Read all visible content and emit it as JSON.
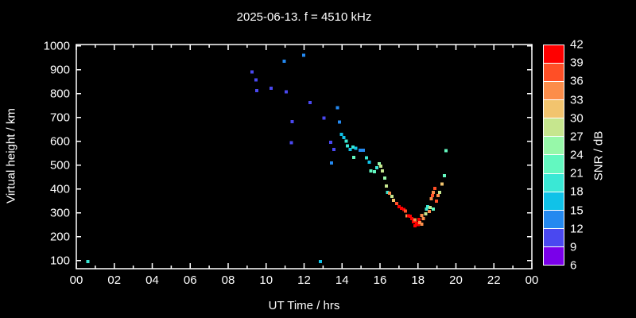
{
  "window": {
    "background": "#000000",
    "foreground": "#ffffff"
  },
  "title": "2025-06-13. f = 4510 kHz",
  "axes": {
    "x_label": "UT Time / hrs",
    "y_label": "Virtual height / km",
    "x_tick_labels": [
      "00",
      "02",
      "04",
      "06",
      "08",
      "10",
      "12",
      "14",
      "16",
      "18",
      "20",
      "22",
      "00"
    ],
    "y_tick_labels": [
      "100",
      "200",
      "300",
      "400",
      "500",
      "600",
      "700",
      "800",
      "900",
      "1000"
    ]
  },
  "colorbar": {
    "title": "SNR / dB",
    "tick_labels_top_to_bottom": [
      "42",
      "39",
      "36",
      "33",
      "30",
      "27",
      "24",
      "21",
      "18",
      "15",
      "12",
      "9",
      "6"
    ]
  },
  "chart_data": {
    "type": "scatter",
    "title": "2025-06-13. f = 4510 kHz",
    "xlabel": "UT Time / hrs",
    "ylabel": "Virtual height / km",
    "xlim": [
      0,
      24
    ],
    "ylim": [
      65.7,
      1005.7
    ],
    "x_major_ticks": [
      0,
      2,
      4,
      6,
      8,
      10,
      12,
      14,
      16,
      18,
      20,
      22,
      24
    ],
    "x_minor_ticks": [
      1,
      3,
      5,
      7,
      9,
      11,
      13,
      15,
      17,
      19,
      21,
      23
    ],
    "y_major_ticks": [
      100,
      200,
      300,
      400,
      500,
      600,
      700,
      800,
      900,
      1000
    ],
    "grid": false,
    "marker": "square",
    "marker_size_px": 4,
    "colorbar": {
      "label": "SNR / dB",
      "tick_values": [
        6,
        9,
        12,
        15,
        18,
        21,
        24,
        27,
        30,
        33,
        36,
        39,
        42
      ],
      "segment_colors_bottom_to_top": [
        "#7a00ea",
        "#4a48f0",
        "#2489f0",
        "#10c2e8",
        "#3ae8d5",
        "#63f8c0",
        "#97f8a9",
        "#c6e68e",
        "#f2c46e",
        "#fc8d4a",
        "#ff4f26",
        "#ff0000"
      ]
    },
    "points_t_h_snr": [
      [
        0.6,
        95,
        19
      ],
      [
        12.86,
        95,
        16
      ],
      [
        9.26,
        890,
        10
      ],
      [
        9.47,
        858,
        10
      ],
      [
        9.51,
        812,
        10
      ],
      [
        10.27,
        822,
        10
      ],
      [
        10.95,
        935,
        13
      ],
      [
        11.06,
        808,
        10
      ],
      [
        11.34,
        594,
        10
      ],
      [
        11.37,
        682,
        10
      ],
      [
        11.98,
        960,
        13
      ],
      [
        12.31,
        762,
        10
      ],
      [
        13.05,
        697,
        10
      ],
      [
        13.41,
        596,
        10
      ],
      [
        13.45,
        509,
        13
      ],
      [
        13.57,
        566,
        11
      ],
      [
        13.75,
        740,
        13
      ],
      [
        13.87,
        681,
        13
      ],
      [
        13.96,
        629,
        16
      ],
      [
        14.09,
        616,
        17
      ],
      [
        14.21,
        601,
        19
      ],
      [
        14.28,
        581,
        18
      ],
      [
        14.42,
        565,
        16
      ],
      [
        14.58,
        576,
        18
      ],
      [
        14.62,
        533,
        22
      ],
      [
        14.73,
        570,
        16
      ],
      [
        14.95,
        562,
        14
      ],
      [
        15.11,
        562,
        14
      ],
      [
        15.29,
        531,
        19
      ],
      [
        15.44,
        512,
        16
      ],
      [
        15.52,
        476,
        21
      ],
      [
        15.7,
        472,
        21
      ],
      [
        15.83,
        489,
        19
      ],
      [
        15.95,
        506,
        24
      ],
      [
        16.05,
        496,
        27
      ],
      [
        16.13,
        476,
        28
      ],
      [
        16.25,
        446,
        24
      ],
      [
        16.34,
        412,
        28
      ],
      [
        16.4,
        386,
        20
      ],
      [
        16.51,
        382,
        34
      ],
      [
        16.63,
        369,
        29
      ],
      [
        16.72,
        352,
        31
      ],
      [
        16.88,
        339,
        37
      ],
      [
        17.01,
        325,
        40
      ],
      [
        17.13,
        319,
        40
      ],
      [
        17.26,
        314,
        40
      ],
      [
        17.34,
        308,
        38
      ],
      [
        17.43,
        288,
        34
      ],
      [
        17.51,
        288,
        40
      ],
      [
        17.6,
        285,
        40
      ],
      [
        17.68,
        275,
        40
      ],
      [
        17.76,
        262,
        40
      ],
      [
        17.85,
        271,
        35
      ],
      [
        17.85,
        246,
        40
      ],
      [
        17.93,
        258,
        40
      ],
      [
        18.01,
        251,
        40
      ],
      [
        18.05,
        272,
        40
      ],
      [
        18.1,
        259,
        35
      ],
      [
        18.19,
        252,
        34
      ],
      [
        18.19,
        289,
        35
      ],
      [
        18.28,
        276,
        35
      ],
      [
        18.4,
        296,
        28
      ],
      [
        18.45,
        315,
        20
      ],
      [
        18.52,
        326,
        19
      ],
      [
        18.6,
        306,
        33
      ],
      [
        18.64,
        322,
        28
      ],
      [
        18.7,
        359,
        34
      ],
      [
        18.77,
        372,
        37
      ],
      [
        18.81,
        386,
        34
      ],
      [
        18.81,
        316,
        23
      ],
      [
        18.9,
        402,
        36
      ],
      [
        18.98,
        349,
        38
      ],
      [
        19.06,
        372,
        34
      ],
      [
        19.15,
        386,
        27
      ],
      [
        19.27,
        420,
        31
      ],
      [
        19.39,
        455,
        21
      ],
      [
        19.48,
        560,
        22
      ]
    ]
  }
}
